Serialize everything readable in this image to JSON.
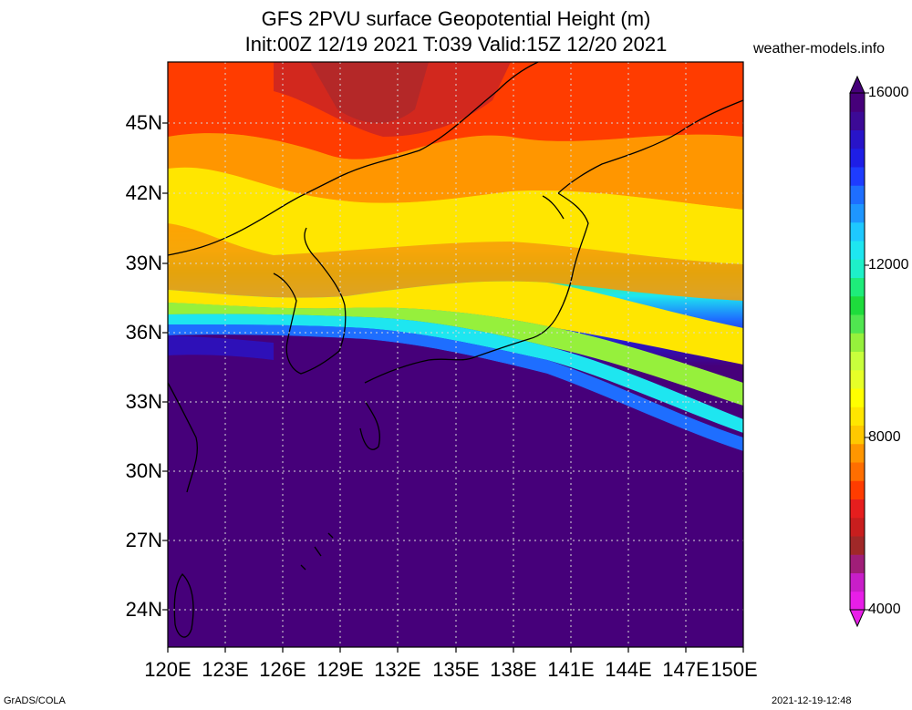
{
  "title": {
    "line1": "GFS 2PVU surface Geopotential Height (m)",
    "line2": "Init:00Z 12/19 2021 T:039 Valid:15Z 12/20 2021"
  },
  "credit": "weather-models.info",
  "lat_labels": [
    "45N",
    "42N",
    "39N",
    "36N",
    "33N",
    "30N",
    "27N",
    "24N"
  ],
  "lon_labels": [
    "120E",
    "123E",
    "126E",
    "129E",
    "132E",
    "135E",
    "138E",
    "141E",
    "144E",
    "147E",
    "150E"
  ],
  "colorbar": {
    "labels": [
      "16000",
      "12000",
      "8000",
      "4000"
    ],
    "min": 4000,
    "max": 16000,
    "colors": [
      "#e81ee8",
      "#c81ec8",
      "#a01e78",
      "#a02828",
      "#c81e1e",
      "#e61e1e",
      "#ff3c00",
      "#ff6e00",
      "#ff9600",
      "#ffc800",
      "#ffe600",
      "#ffff00",
      "#e6ff28",
      "#c8ff3c",
      "#96f03c",
      "#50e650",
      "#1edc3c",
      "#1eec7a",
      "#1ef0c8",
      "#1ee6f0",
      "#1ec8ff",
      "#1e96ff",
      "#1e6eff",
      "#1e3cff",
      "#1e1ee6",
      "#2814c8",
      "#3c0a96",
      "#46007a"
    ]
  },
  "footer": {
    "left": "GrADS/COLA",
    "right": "2021-12-19-12:48"
  }
}
